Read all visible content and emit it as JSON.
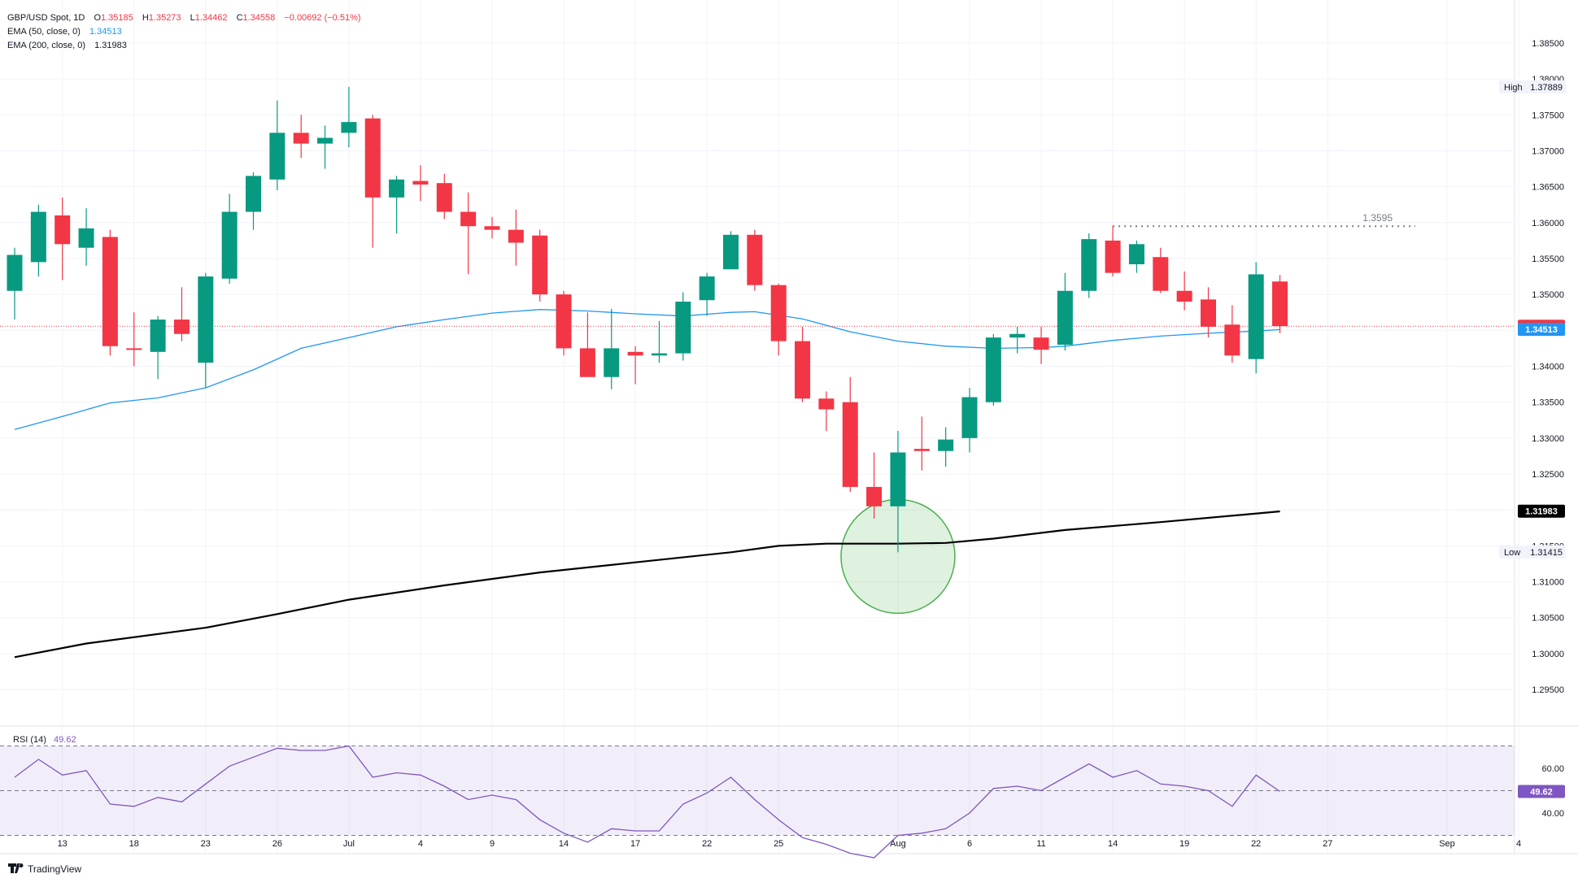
{
  "legend": {
    "symbol": "GBP/USD Spot, 1D",
    "o_label": "O",
    "o": "1.35185",
    "h_label": "H",
    "h": "1.35273",
    "l_label": "L",
    "l": "1.34462",
    "c_label": "C",
    "c": "1.34558",
    "change": "−0.00692 (−0.51%)",
    "ema50_label": "EMA (50, close, 0)",
    "ema50_value": "1.34513",
    "ema200_label": "EMA (200, close, 0)",
    "ema200_value": "1.31983"
  },
  "rsi": {
    "label": "RSI (14)",
    "value": "49.62",
    "upper": 70,
    "mid": 50,
    "lower": 30
  },
  "branding": {
    "logo_text": "TradingView"
  },
  "colors": {
    "up": "#089981",
    "down": "#f23645",
    "ema50": "#2196f3",
    "ema200": "#000000",
    "rsi": "#7e57c2",
    "highlight": "#4caf50"
  },
  "chart_data": {
    "type": "candlestick",
    "ylim": [
      1.2915,
      1.3885
    ],
    "y_ticks": [
      "1.38500",
      "1.38000",
      "1.37500",
      "1.37000",
      "1.36500",
      "1.36000",
      "1.35500",
      "1.35000",
      "1.34500",
      "1.34000",
      "1.33500",
      "1.33000",
      "1.32500",
      "1.32000",
      "1.31500",
      "1.31000",
      "1.30500",
      "1.30000",
      "1.29500"
    ],
    "x_ticks": [
      {
        "i": 2,
        "label": "13"
      },
      {
        "i": 5,
        "label": "18"
      },
      {
        "i": 8,
        "label": "23"
      },
      {
        "i": 11,
        "label": "26"
      },
      {
        "i": 14,
        "label": "Jul"
      },
      {
        "i": 17,
        "label": "4"
      },
      {
        "i": 20,
        "label": "9"
      },
      {
        "i": 23,
        "label": "14"
      },
      {
        "i": 26,
        "label": "17"
      },
      {
        "i": 29,
        "label": "22"
      },
      {
        "i": 32,
        "label": "25"
      },
      {
        "i": 37,
        "label": "Aug"
      },
      {
        "i": 40,
        "label": "6"
      },
      {
        "i": 43,
        "label": "11"
      },
      {
        "i": 46,
        "label": "14"
      },
      {
        "i": 49,
        "label": "19"
      },
      {
        "i": 52,
        "label": "22"
      },
      {
        "i": 55,
        "label": "27"
      },
      {
        "i": 60,
        "label": "Sep"
      },
      {
        "i": 63,
        "label": "4"
      }
    ],
    "candles": [
      [
        1.3505,
        1.3565,
        1.3465,
        1.3555
      ],
      [
        1.3545,
        1.3625,
        1.3525,
        1.3615
      ],
      [
        1.361,
        1.3635,
        1.352,
        1.357
      ],
      [
        1.3565,
        1.362,
        1.354,
        1.3592
      ],
      [
        1.358,
        1.359,
        1.3415,
        1.3428
      ],
      [
        1.3425,
        1.3475,
        1.34,
        1.3423
      ],
      [
        1.342,
        1.347,
        1.3382,
        1.3465
      ],
      [
        1.3465,
        1.351,
        1.3435,
        1.3445
      ],
      [
        1.3405,
        1.353,
        1.337,
        1.3525
      ],
      [
        1.3522,
        1.364,
        1.3515,
        1.3615
      ],
      [
        1.3615,
        1.367,
        1.359,
        1.3665
      ],
      [
        1.366,
        1.377,
        1.3645,
        1.3725
      ],
      [
        1.3725,
        1.375,
        1.369,
        1.371
      ],
      [
        1.371,
        1.3735,
        1.3675,
        1.3718
      ],
      [
        1.3725,
        1.3789,
        1.3705,
        1.374
      ],
      [
        1.3745,
        1.375,
        1.3565,
        1.3635
      ],
      [
        1.3635,
        1.3665,
        1.3585,
        1.366
      ],
      [
        1.3658,
        1.368,
        1.363,
        1.3653
      ],
      [
        1.3655,
        1.3668,
        1.3605,
        1.3615
      ],
      [
        1.3615,
        1.3642,
        1.3528,
        1.3595
      ],
      [
        1.3595,
        1.3608,
        1.3578,
        1.359
      ],
      [
        1.359,
        1.3618,
        1.354,
        1.3572
      ],
      [
        1.3582,
        1.359,
        1.349,
        1.35
      ],
      [
        1.35,
        1.3505,
        1.3415,
        1.3425
      ],
      [
        1.3425,
        1.3475,
        1.339,
        1.3385
      ],
      [
        1.3385,
        1.348,
        1.3368,
        1.3425
      ],
      [
        1.342,
        1.3428,
        1.3375,
        1.3415
      ],
      [
        1.3415,
        1.3463,
        1.3405,
        1.3418
      ],
      [
        1.3418,
        1.3503,
        1.3408,
        1.349
      ],
      [
        1.3492,
        1.353,
        1.347,
        1.3525
      ],
      [
        1.3535,
        1.3588,
        1.3535,
        1.3583
      ],
      [
        1.3583,
        1.359,
        1.3505,
        1.3513
      ],
      [
        1.3513,
        1.3515,
        1.3415,
        1.3435
      ],
      [
        1.3435,
        1.3455,
        1.335,
        1.3355
      ],
      [
        1.3355,
        1.3365,
        1.331,
        1.334
      ],
      [
        1.335,
        1.3385,
        1.3225,
        1.3232
      ],
      [
        1.3232,
        1.328,
        1.3188,
        1.3205
      ],
      [
        1.3205,
        1.331,
        1.3141,
        1.328
      ],
      [
        1.3285,
        1.333,
        1.3255,
        1.3282
      ],
      [
        1.3282,
        1.3315,
        1.326,
        1.3298
      ],
      [
        1.33,
        1.337,
        1.328,
        1.3357
      ],
      [
        1.335,
        1.3445,
        1.3345,
        1.344
      ],
      [
        1.344,
        1.3455,
        1.3418,
        1.3445
      ],
      [
        1.344,
        1.3455,
        1.3403,
        1.3423
      ],
      [
        1.343,
        1.353,
        1.3422,
        1.3505
      ],
      [
        1.3505,
        1.3585,
        1.3495,
        1.3577
      ],
      [
        1.3575,
        1.3595,
        1.3525,
        1.353
      ],
      [
        1.3542,
        1.3575,
        1.353,
        1.357
      ],
      [
        1.3552,
        1.3565,
        1.3502,
        1.3505
      ],
      [
        1.3505,
        1.3532,
        1.3478,
        1.349
      ],
      [
        1.3493,
        1.351,
        1.344,
        1.3455
      ],
      [
        1.3458,
        1.3485,
        1.3405,
        1.3415
      ],
      [
        1.341,
        1.3545,
        1.339,
        1.3528
      ],
      [
        1.3518,
        1.3527,
        1.3446,
        1.3456
      ]
    ],
    "ema50": [
      [
        0,
        1.3312
      ],
      [
        2,
        1.333
      ],
      [
        4,
        1.3349
      ],
      [
        6,
        1.3356
      ],
      [
        8,
        1.337
      ],
      [
        10,
        1.3395
      ],
      [
        12,
        1.3425
      ],
      [
        14,
        1.344
      ],
      [
        16,
        1.3455
      ],
      [
        18,
        1.3465
      ],
      [
        20,
        1.3474
      ],
      [
        22,
        1.3479
      ],
      [
        24,
        1.3477
      ],
      [
        26,
        1.3473
      ],
      [
        28,
        1.347
      ],
      [
        30,
        1.3475
      ],
      [
        31,
        1.3476
      ],
      [
        33,
        1.3466
      ],
      [
        35,
        1.3448
      ],
      [
        37,
        1.3435
      ],
      [
        39,
        1.3428
      ],
      [
        41,
        1.3425
      ],
      [
        43,
        1.3426
      ],
      [
        44,
        1.3428
      ],
      [
        46,
        1.3436
      ],
      [
        48,
        1.3442
      ],
      [
        50,
        1.3446
      ],
      [
        52,
        1.3449
      ],
      [
        53,
        1.3451
      ]
    ],
    "ema200": [
      [
        0,
        1.2995
      ],
      [
        3,
        1.3014
      ],
      [
        8,
        1.3036
      ],
      [
        11,
        1.3055
      ],
      [
        14,
        1.3075
      ],
      [
        18,
        1.3095
      ],
      [
        22,
        1.3113
      ],
      [
        26,
        1.3127
      ],
      [
        30,
        1.3141
      ],
      [
        32,
        1.315
      ],
      [
        34,
        1.3153
      ],
      [
        37,
        1.3153
      ],
      [
        39,
        1.3154
      ],
      [
        41,
        1.316
      ],
      [
        44,
        1.3172
      ],
      [
        48,
        1.3183
      ],
      [
        53,
        1.3198
      ]
    ],
    "rsi_values": [
      56,
      64,
      57,
      59,
      44,
      43,
      47,
      45,
      53,
      61,
      65,
      69,
      68,
      68,
      70,
      56,
      58,
      57,
      52,
      46,
      48,
      46,
      37,
      31,
      27,
      33,
      32,
      32,
      44,
      49,
      56,
      46,
      37,
      29,
      26,
      22,
      20,
      30,
      31,
      33,
      40,
      51,
      52,
      50,
      56,
      62,
      56,
      59,
      53,
      52,
      50,
      43,
      57,
      49.62
    ],
    "labels": {
      "high_label": "High",
      "high_value": "1.37889",
      "low_label": "Low",
      "low_value": "1.31415",
      "last_price": "1.34558",
      "ema50_tag": "1.34513",
      "ema200_tag": "1.31983",
      "rsi_ticks": [
        "60.00",
        "40.00"
      ],
      "rsi_tag": "49.62",
      "resistance_label": "1.3595",
      "resistance_value": 1.3595
    }
  }
}
